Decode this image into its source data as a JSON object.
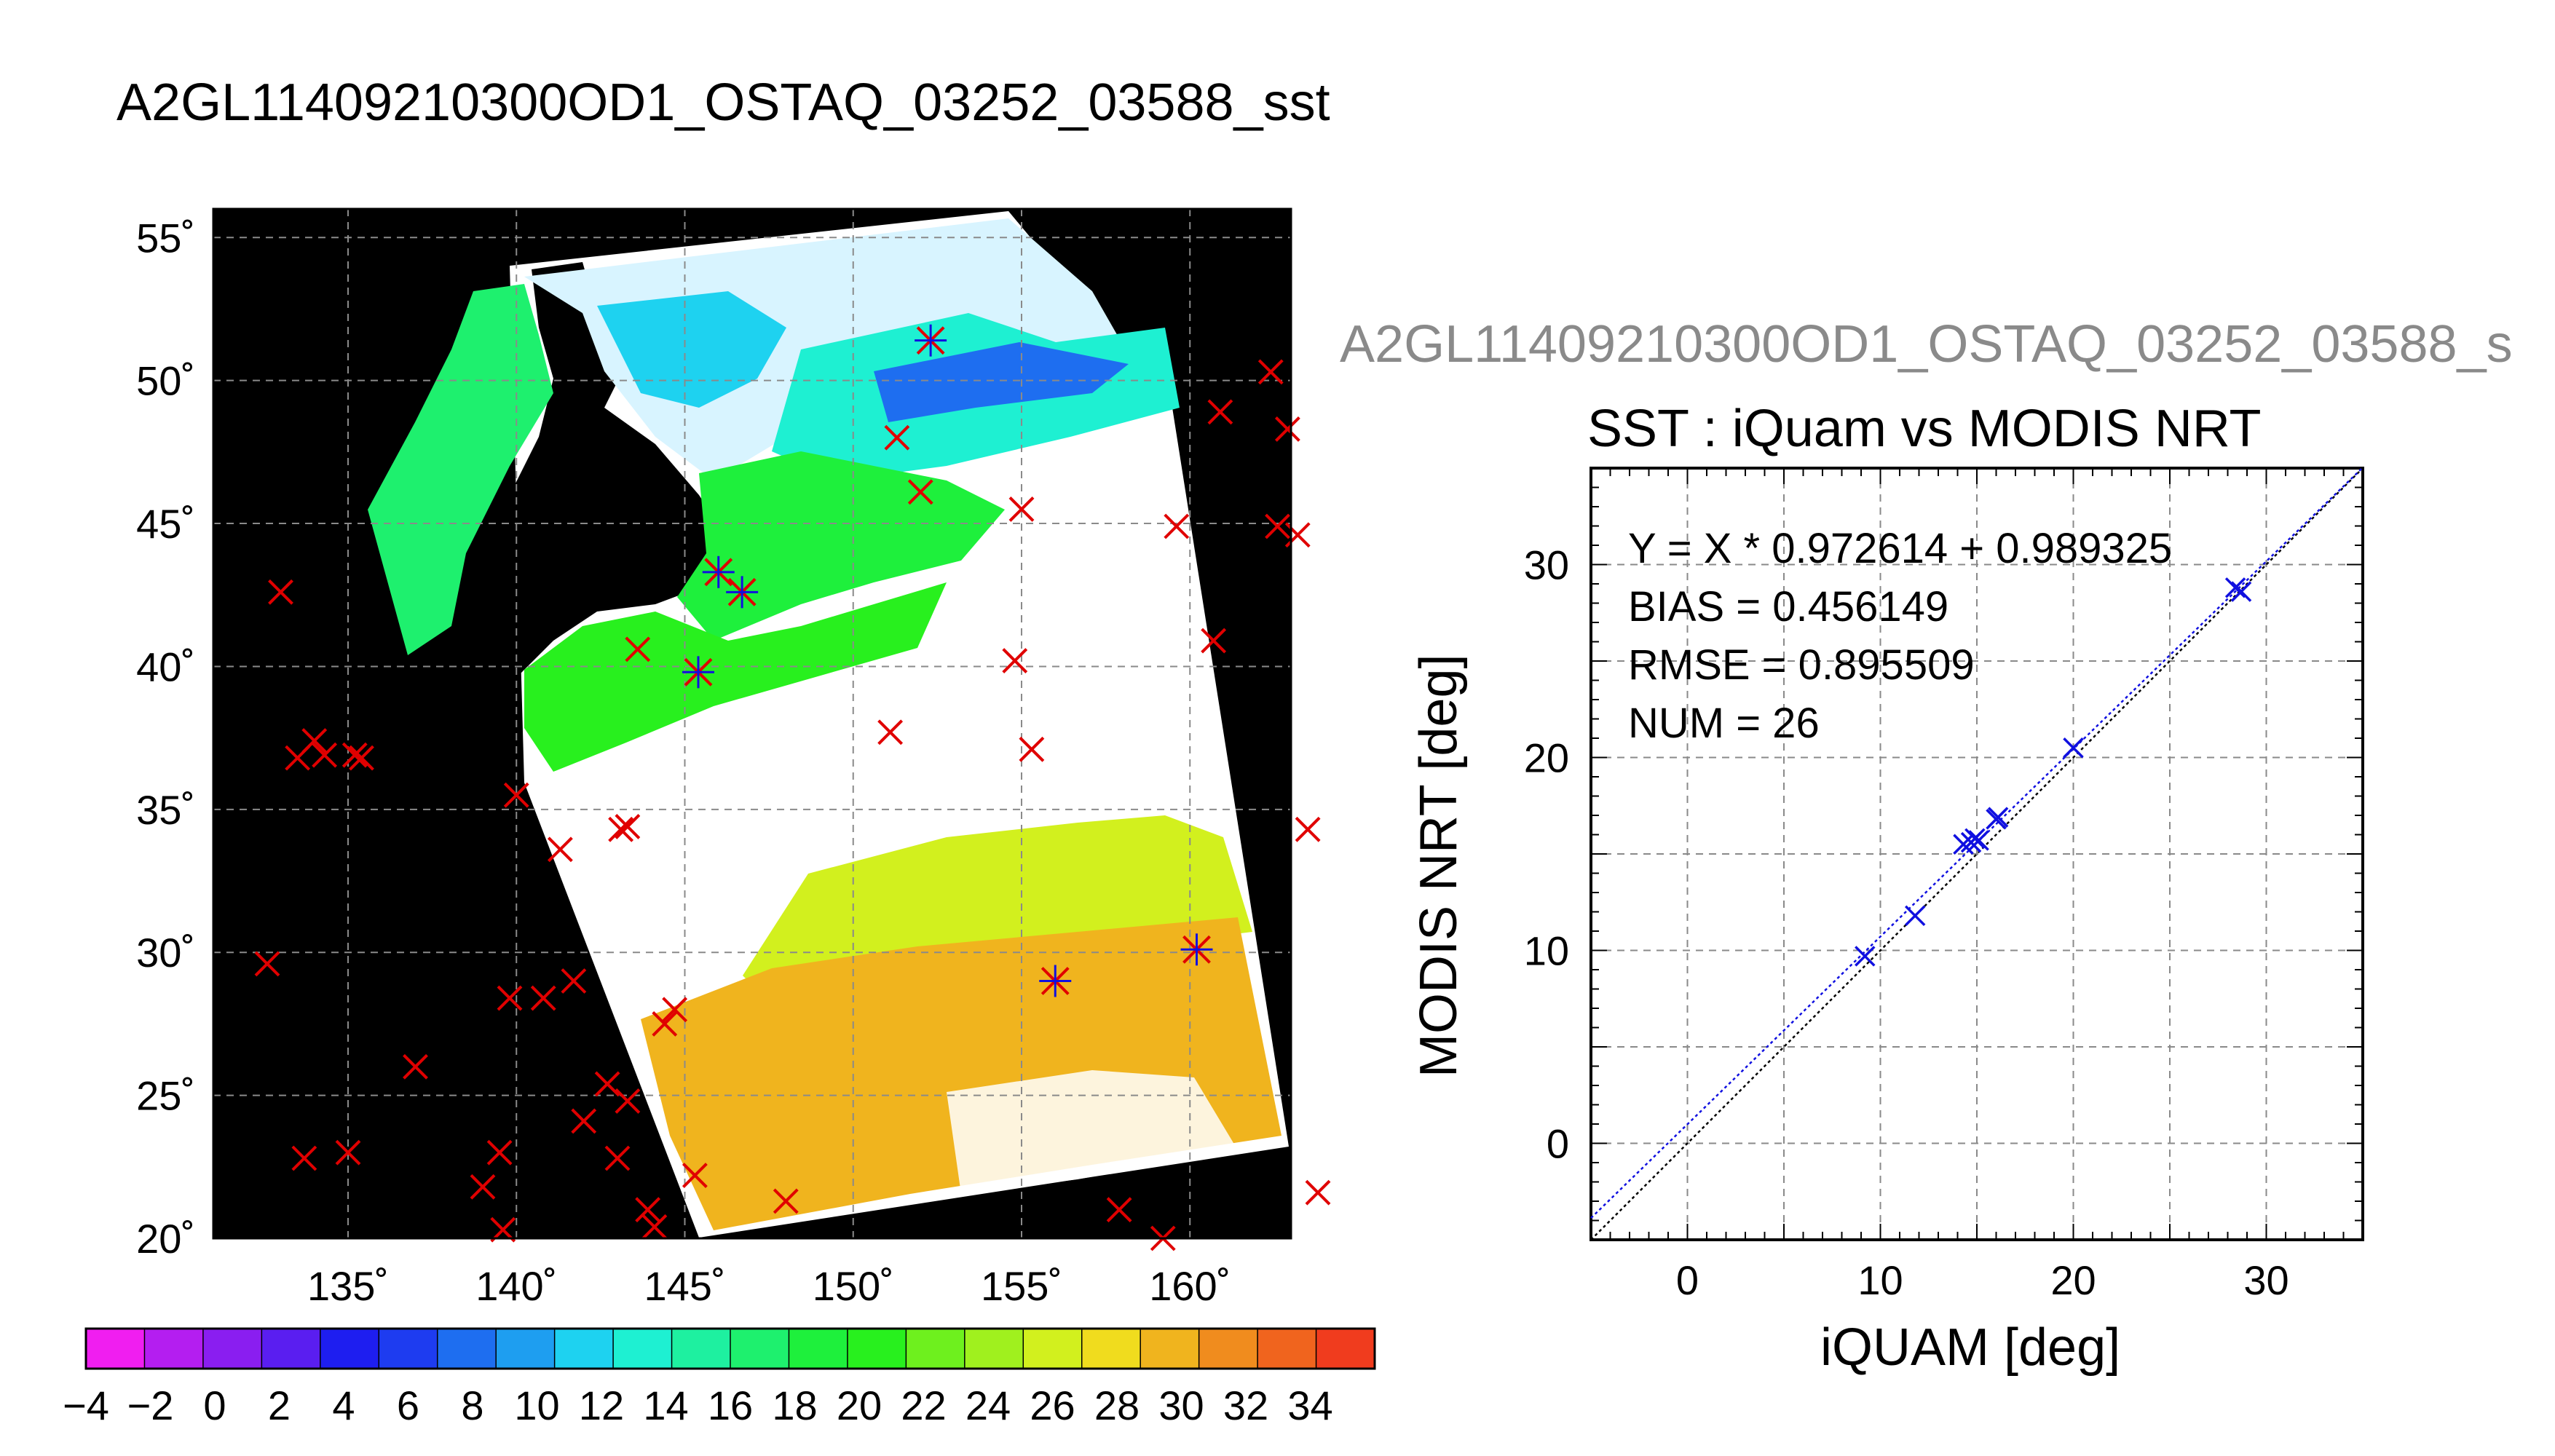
{
  "map_title": "A2GL11409210300OD1_OSTAQ_03252_03588_sst",
  "scatter_header": "A2GL11409210300OD1_OSTAQ_03252_03588_s",
  "colors": {
    "match_marker": "#e00000",
    "matchup_marker": "#1010e0",
    "grid": "#9a9a9a",
    "land": "#000000"
  },
  "map": {
    "lat_labels": [
      "55˚",
      "50˚",
      "45˚",
      "40˚",
      "35˚",
      "30˚",
      "25˚",
      "20˚"
    ],
    "lon_labels": [
      "135˚",
      "140˚",
      "145˚",
      "150˚",
      "155˚",
      "160˚"
    ],
    "lon_range": [
      131,
      163
    ],
    "lat_range": [
      20,
      56
    ]
  },
  "colorbar": {
    "labels": [
      "-4",
      "-2",
      "0",
      "2",
      "4",
      "6",
      "8",
      "10",
      "12",
      "14",
      "16",
      "18",
      "20",
      "22",
      "24",
      "26",
      "28",
      "30",
      "32",
      "34"
    ],
    "range": [
      -4,
      36
    ],
    "colors": [
      "#f01ef0",
      "#b41ef0",
      "#8a1ef0",
      "#5a1ef0",
      "#1e1ef0",
      "#1e3cf0",
      "#1e6ef0",
      "#1e9ef0",
      "#1ed2f0",
      "#1ef0d2",
      "#1ef0a0",
      "#1ef06e",
      "#1ef03c",
      "#28f01e",
      "#6ef01e",
      "#a0f01e",
      "#d2f01e",
      "#f0dc1e",
      "#f0b41e",
      "#f08c1e",
      "#f0641e",
      "#f03c1e"
    ]
  },
  "chart_data": {
    "type": "scatter",
    "title": "SST : iQuam vs MODIS NRT",
    "xlabel": "iQUAM [deg]",
    "ylabel": "MODIS NRT [deg]",
    "xlim": [
      -5,
      35
    ],
    "ylim": [
      -5,
      35
    ],
    "xticks": [
      "0",
      "10",
      "20",
      "30"
    ],
    "yticks": [
      "0",
      "10",
      "20",
      "30"
    ],
    "grid": true,
    "stats": {
      "fit": "Y = X * 0.972614 + 0.989325",
      "bias": "BIAS = 0.456149",
      "rmse": "RMSE = 0.895509",
      "num": "NUM = 26"
    },
    "fit_line": {
      "slope": 0.972614,
      "intercept": 0.989325
    },
    "x": [
      9.2,
      11.8,
      14.3,
      14.7,
      14.9,
      15.1,
      16.0,
      16.1,
      20.0,
      28.4,
      28.7
    ],
    "y": [
      9.7,
      11.8,
      15.5,
      15.6,
      15.8,
      15.7,
      16.8,
      16.9,
      20.5,
      28.8,
      28.6
    ]
  }
}
